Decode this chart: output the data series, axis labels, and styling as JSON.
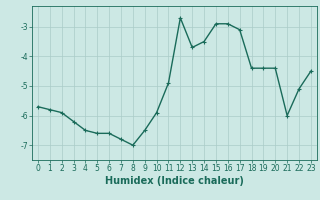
{
  "x": [
    0,
    1,
    2,
    3,
    4,
    5,
    6,
    7,
    8,
    9,
    10,
    11,
    12,
    13,
    14,
    15,
    16,
    17,
    18,
    19,
    20,
    21,
    22,
    23
  ],
  "y": [
    -5.7,
    -5.8,
    -5.9,
    -6.2,
    -6.5,
    -6.6,
    -6.6,
    -6.8,
    -7.0,
    -6.5,
    -5.9,
    -4.9,
    -2.7,
    -3.7,
    -3.5,
    -2.9,
    -2.9,
    -3.1,
    -4.4,
    -4.4,
    -4.4,
    -6.0,
    -5.1,
    -4.5
  ],
  "line_color": "#1a6b5a",
  "marker": "+",
  "marker_size": 3,
  "bg_color": "#cce8e4",
  "grid_color": "#aaccc8",
  "tick_color": "#1a6b5a",
  "xlabel": "Humidex (Indice chaleur)",
  "xlabel_fontsize": 7,
  "ylim": [
    -7.5,
    -2.3
  ],
  "xlim": [
    -0.5,
    23.5
  ],
  "yticks": [
    -7,
    -6,
    -5,
    -4,
    -3
  ],
  "xticks": [
    0,
    1,
    2,
    3,
    4,
    5,
    6,
    7,
    8,
    9,
    10,
    11,
    12,
    13,
    14,
    15,
    16,
    17,
    18,
    19,
    20,
    21,
    22,
    23
  ],
  "tick_fontsize": 5.5,
  "line_width": 1.0
}
